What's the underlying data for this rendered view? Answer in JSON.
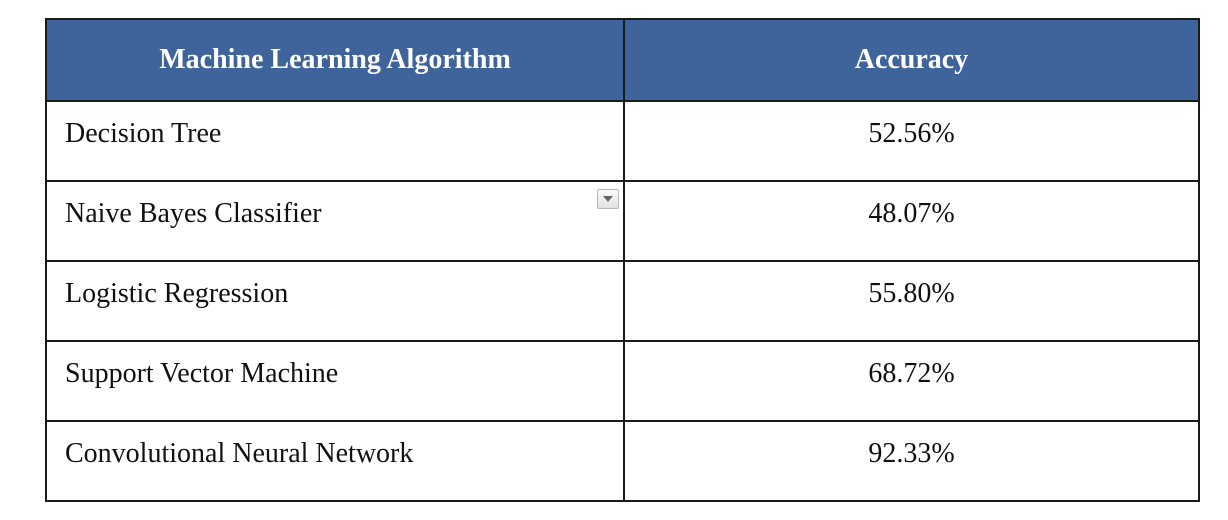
{
  "table": {
    "headers": {
      "algorithm": "Machine Learning Algorithm",
      "accuracy": "Accuracy"
    },
    "rows": [
      {
        "algorithm": "Decision Tree",
        "accuracy": "52.56%"
      },
      {
        "algorithm": "Naive Bayes Classifier",
        "accuracy": "48.07%"
      },
      {
        "algorithm": "Logistic Regression",
        "accuracy": "55.80%"
      },
      {
        "algorithm": "Support Vector Machine",
        "accuracy": "68.72%"
      },
      {
        "algorithm": "Convolutional Neural Network",
        "accuracy": "92.33%"
      }
    ],
    "dropdown_icon": "chevron-down-icon",
    "header_color": "#3f649b"
  }
}
